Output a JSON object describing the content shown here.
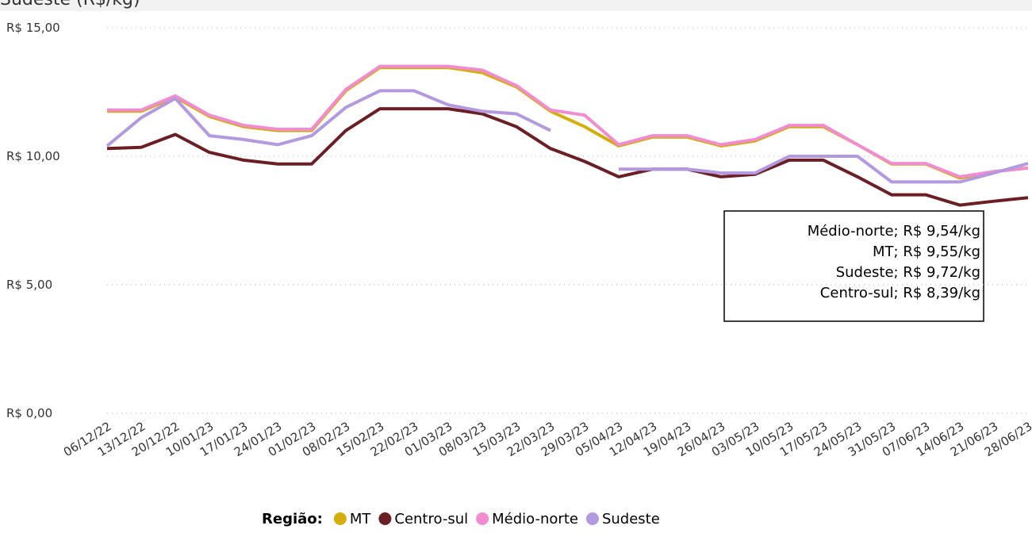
{
  "chart_data": {
    "type": "line",
    "title": "Sudeste (R$/kg)",
    "categories": [
      "06/12/22",
      "13/12/22",
      "20/12/22",
      "10/01/23",
      "17/01/23",
      "24/01/23",
      "01/02/23",
      "08/02/23",
      "15/02/23",
      "22/02/23",
      "01/03/23",
      "08/03/23",
      "15/03/23",
      "22/03/23",
      "29/03/23",
      "05/04/23",
      "12/04/23",
      "19/04/23",
      "26/04/23",
      "03/05/23",
      "10/05/23",
      "17/05/23",
      "24/05/23",
      "31/05/23",
      "07/06/23",
      "14/06/23",
      "21/06/23",
      "28/06/23"
    ],
    "series": [
      {
        "name": "MT",
        "color": "#d4ae0c",
        "values": [
          11.75,
          11.75,
          12.3,
          11.55,
          11.15,
          11.0,
          11.0,
          12.55,
          13.45,
          13.45,
          13.45,
          13.25,
          12.7,
          11.75,
          11.15,
          10.4,
          10.75,
          10.75,
          10.4,
          10.6,
          11.15,
          11.15,
          10.45,
          9.7,
          9.7,
          9.15,
          9.4,
          9.55
        ]
      },
      {
        "name": "Centro-sul",
        "color": "#6b1f24",
        "values": [
          10.3,
          10.35,
          10.85,
          10.15,
          9.85,
          9.7,
          9.7,
          11.0,
          11.85,
          11.85,
          11.85,
          11.65,
          11.15,
          10.3,
          9.8,
          9.2,
          9.5,
          9.5,
          9.2,
          9.3,
          9.85,
          9.85,
          9.2,
          8.5,
          8.5,
          8.1,
          8.25,
          8.39
        ]
      },
      {
        "name": "Médio-norte",
        "color": "#f08ccf",
        "values": [
          11.8,
          11.8,
          12.35,
          11.6,
          11.2,
          11.05,
          11.05,
          12.6,
          13.5,
          13.5,
          13.5,
          13.35,
          12.75,
          11.8,
          11.6,
          10.45,
          10.8,
          10.8,
          10.45,
          10.65,
          11.2,
          11.2,
          10.45,
          9.72,
          9.72,
          9.2,
          9.4,
          9.54
        ]
      },
      {
        "name": "Sudeste",
        "color": "#b39ae0",
        "values": [
          10.4,
          11.5,
          12.25,
          10.8,
          10.65,
          10.45,
          10.8,
          11.9,
          12.55,
          12.55,
          12.0,
          11.75,
          11.65,
          11.0,
          null,
          9.5,
          9.5,
          9.5,
          9.35,
          9.35,
          10.0,
          10.0,
          10.0,
          9.0,
          9.0,
          9.0,
          9.35,
          9.72
        ]
      }
    ],
    "ylim": [
      0,
      15
    ],
    "yticks": [
      {
        "value": 0,
        "label": "R$ 0,00"
      },
      {
        "value": 5,
        "label": "R$ 5,00"
      },
      {
        "value": 10,
        "label": "R$ 10,00"
      },
      {
        "value": 15,
        "label": "R$ 15,00"
      }
    ],
    "grid": true,
    "legend_title": "Região:",
    "annotation": [
      "Médio-norte; R$ 9,54/kg",
      "MT; R$ 9,55/kg",
      "Sudeste; R$ 9,72/kg",
      "Centro-sul; R$ 8,39/kg"
    ]
  }
}
